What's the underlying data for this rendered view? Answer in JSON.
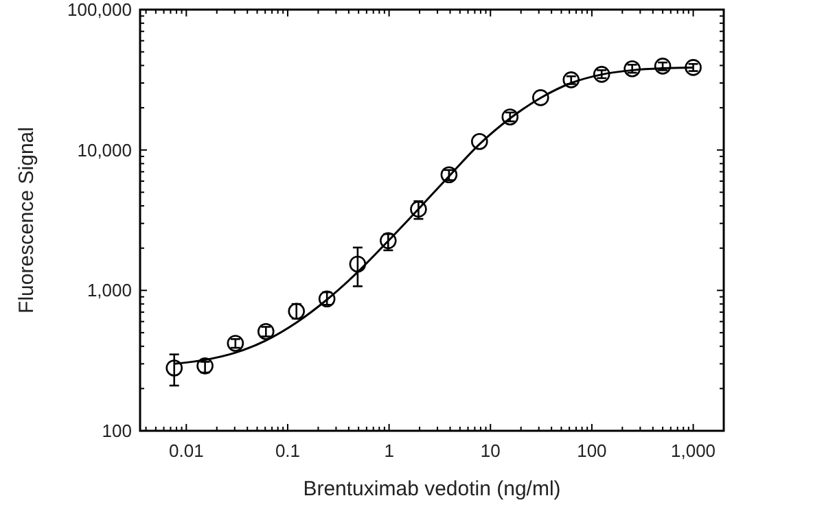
{
  "chart_data": {
    "type": "scatter",
    "xlabel": "Brentuximab vedotin (ng/ml)",
    "ylabel": "Fluorescence Signal",
    "log": "xy",
    "grid": false,
    "xlim": [
      0.0035,
      2000
    ],
    "ylim": [
      100,
      100000
    ],
    "xticks": [
      {
        "value": 0.004,
        "label": null
      },
      {
        "value": 0.005,
        "label": null
      },
      {
        "value": 0.006,
        "label": null
      },
      {
        "value": 0.007,
        "label": null
      },
      {
        "value": 0.008,
        "label": null
      },
      {
        "value": 0.009,
        "label": null
      },
      {
        "value": 0.01,
        "label": "0.01"
      },
      {
        "value": 0.02,
        "label": null
      },
      {
        "value": 0.03,
        "label": null
      },
      {
        "value": 0.04,
        "label": null
      },
      {
        "value": 0.05,
        "label": null
      },
      {
        "value": 0.06,
        "label": null
      },
      {
        "value": 0.07,
        "label": null
      },
      {
        "value": 0.08,
        "label": null
      },
      {
        "value": 0.09,
        "label": null
      },
      {
        "value": 0.1,
        "label": "0.1"
      },
      {
        "value": 0.2,
        "label": null
      },
      {
        "value": 0.3,
        "label": null
      },
      {
        "value": 0.4,
        "label": null
      },
      {
        "value": 0.5,
        "label": null
      },
      {
        "value": 0.6,
        "label": null
      },
      {
        "value": 0.7,
        "label": null
      },
      {
        "value": 0.8,
        "label": null
      },
      {
        "value": 0.9,
        "label": null
      },
      {
        "value": 1,
        "label": "1"
      },
      {
        "value": 2,
        "label": null
      },
      {
        "value": 3,
        "label": null
      },
      {
        "value": 4,
        "label": null
      },
      {
        "value": 5,
        "label": null
      },
      {
        "value": 6,
        "label": null
      },
      {
        "value": 7,
        "label": null
      },
      {
        "value": 8,
        "label": null
      },
      {
        "value": 9,
        "label": null
      },
      {
        "value": 10,
        "label": "10"
      },
      {
        "value": 20,
        "label": null
      },
      {
        "value": 30,
        "label": null
      },
      {
        "value": 40,
        "label": null
      },
      {
        "value": 50,
        "label": null
      },
      {
        "value": 60,
        "label": null
      },
      {
        "value": 70,
        "label": null
      },
      {
        "value": 80,
        "label": null
      },
      {
        "value": 90,
        "label": null
      },
      {
        "value": 100,
        "label": "100"
      },
      {
        "value": 200,
        "label": null
      },
      {
        "value": 300,
        "label": null
      },
      {
        "value": 400,
        "label": null
      },
      {
        "value": 500,
        "label": null
      },
      {
        "value": 600,
        "label": null
      },
      {
        "value": 700,
        "label": null
      },
      {
        "value": 800,
        "label": null
      },
      {
        "value": 900,
        "label": null
      },
      {
        "value": 1000,
        "label": "1,000"
      },
      {
        "value": 2000,
        "label": null
      }
    ],
    "yticks": [
      {
        "value": 100,
        "label": "100"
      },
      {
        "value": 200,
        "label": null
      },
      {
        "value": 300,
        "label": null
      },
      {
        "value": 400,
        "label": null
      },
      {
        "value": 500,
        "label": null
      },
      {
        "value": 600,
        "label": null
      },
      {
        "value": 700,
        "label": null
      },
      {
        "value": 800,
        "label": null
      },
      {
        "value": 900,
        "label": null
      },
      {
        "value": 1000,
        "label": "1,000"
      },
      {
        "value": 2000,
        "label": null
      },
      {
        "value": 3000,
        "label": null
      },
      {
        "value": 4000,
        "label": null
      },
      {
        "value": 5000,
        "label": null
      },
      {
        "value": 6000,
        "label": null
      },
      {
        "value": 7000,
        "label": null
      },
      {
        "value": 8000,
        "label": null
      },
      {
        "value": 9000,
        "label": null
      },
      {
        "value": 10000,
        "label": "10,000"
      },
      {
        "value": 20000,
        "label": null
      },
      {
        "value": 30000,
        "label": null
      },
      {
        "value": 40000,
        "label": null
      },
      {
        "value": 50000,
        "label": null
      },
      {
        "value": 60000,
        "label": null
      },
      {
        "value": 70000,
        "label": null
      },
      {
        "value": 80000,
        "label": null
      },
      {
        "value": 90000,
        "label": null
      },
      {
        "value": 100000,
        "label": "100,000"
      }
    ],
    "x": [
      0.0076,
      0.0153,
      0.0305,
      0.061,
      0.122,
      0.244,
      0.49,
      0.98,
      1.95,
      3.9,
      7.8,
      15.6,
      31.25,
      62.5,
      125,
      250,
      500,
      1000
    ],
    "series": [
      {
        "color": "#000000",
        "marker": "circle",
        "values": [
          280,
          290,
          420,
          510,
          710,
          870,
          1540,
          2260,
          3790,
          6660,
          11500,
          17200,
          23600,
          31600,
          34600,
          37900,
          39600,
          38700
        ],
        "errors": [
          [
            210,
            350
          ],
          [
            260,
            310
          ],
          [
            390,
            450
          ],
          [
            470,
            550
          ],
          [
            630,
            800
          ],
          [
            790,
            970
          ],
          [
            1070,
            2020
          ],
          [
            1930,
            2520
          ],
          [
            3230,
            4320
          ],
          [
            6100,
            7200
          ],
          null,
          [
            16000,
            18500
          ],
          null,
          [
            29500,
            33500
          ],
          [
            32500,
            37000
          ],
          [
            35500,
            40500
          ],
          [
            37000,
            42000
          ],
          [
            36500,
            41000
          ]
        ]
      },
      {
        "type": "line",
        "color": "#000000",
        "marker": "none",
        "line_style": "solid",
        "values": [
          300,
          320,
          360,
          440,
          590,
          860,
          1350,
          2250,
          3800,
          6500,
          11000,
          16800,
          23500,
          30000,
          34500,
          37000,
          38200,
          38700
        ]
      }
    ]
  }
}
